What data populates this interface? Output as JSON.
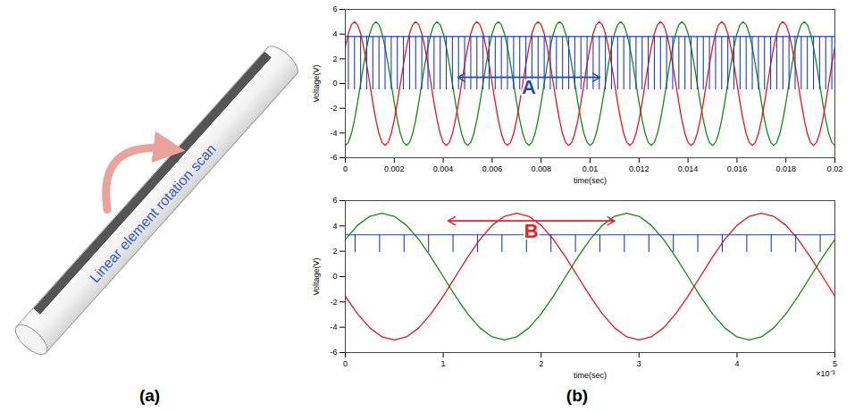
{
  "diagram": {
    "label": "(a)",
    "text": "Linear element rotation scan"
  },
  "chart_label": "(b)",
  "chart_data": [
    {
      "type": "line",
      "xlabel": "time(sec)",
      "ylabel": "Voltage(V)",
      "xlim": [
        0,
        0.02
      ],
      "xticks": [
        0,
        0.002,
        0.004,
        0.006,
        0.008,
        0.01,
        0.012,
        0.014,
        0.016,
        0.018,
        0.02
      ],
      "ylim": [
        -6,
        6
      ],
      "yticks": [
        -6,
        -4,
        -2,
        0,
        2,
        4,
        6
      ],
      "grid": false,
      "x": [
        0,
        0.000125,
        0.00025,
        0.000375,
        0.0005,
        0.000625,
        0.00075,
        0.000875,
        0.001,
        0.001125,
        0.00125,
        0.001375,
        0.0015,
        0.001625,
        0.00175,
        0.001875,
        0.002,
        0.002125,
        0.00225,
        0.002375,
        0.0025,
        0.002625,
        0.00275,
        0.002875,
        0.003,
        0.003125,
        0.00325,
        0.003375,
        0.0035,
        0.003625,
        0.00375,
        0.003875,
        0.004,
        0.004125,
        0.00425,
        0.004375,
        0.0045,
        0.004625,
        0.00475,
        0.004875,
        0.005,
        0.005125,
        0.00525,
        0.005375,
        0.0055,
        0.005625,
        0.00575,
        0.005875,
        0.006,
        0.006125,
        0.00625,
        0.006375,
        0.0065,
        0.006625,
        0.00675,
        0.006875,
        0.007,
        0.007125,
        0.00725,
        0.007375,
        0.0075,
        0.007625,
        0.00775,
        0.007875,
        0.008,
        0.008125,
        0.00825,
        0.008375,
        0.0085,
        0.008625,
        0.00875,
        0.008875,
        0.009,
        0.009125,
        0.00925,
        0.009375,
        0.0095,
        0.009625,
        0.00975,
        0.009875,
        0.01,
        0.010125,
        0.01025,
        0.010375,
        0.0105,
        0.010625,
        0.01075,
        0.010875,
        0.011,
        0.011125,
        0.01125,
        0.011375,
        0.0115,
        0.011625,
        0.01175,
        0.011875,
        0.012,
        0.012125,
        0.01225,
        0.012375,
        0.0125,
        0.012625,
        0.01275,
        0.012875,
        0.013,
        0.013125,
        0.01325,
        0.013375,
        0.0135,
        0.013625,
        0.01375,
        0.013875,
        0.014,
        0.014125,
        0.01425,
        0.014375,
        0.0145,
        0.014625,
        0.01475,
        0.014875,
        0.015,
        0.015125,
        0.01525,
        0.015375,
        0.0155,
        0.015625,
        0.01575,
        0.015875,
        0.016,
        0.016125,
        0.01625,
        0.016375,
        0.0165,
        0.016625,
        0.01675,
        0.016875,
        0.017,
        0.017125,
        0.01725,
        0.017375,
        0.0175,
        0.017625,
        0.01775,
        0.017875,
        0.018,
        0.018125,
        0.01825,
        0.018375,
        0.0185,
        0.018625,
        0.01875,
        0.018875,
        0.019,
        0.019125,
        0.01925,
        0.019375,
        0.0195,
        0.019625,
        0.01975,
        0.019875,
        0.02
      ],
      "series": [
        {
          "color": "#128a12",
          "values": [
            -5,
            -4.76,
            -4.05,
            -2.94,
            -1.55,
            0,
            1.55,
            2.94,
            4.05,
            4.76,
            5,
            4.76,
            4.05,
            2.94,
            1.55,
            0,
            -1.55,
            -2.94,
            -4.05,
            -4.76,
            -5,
            -4.76,
            -4.05,
            -2.94,
            -1.55,
            0,
            1.55,
            2.94,
            4.05,
            4.76,
            5,
            4.76,
            4.05,
            2.94,
            1.55,
            0,
            -1.55,
            -2.94,
            -4.05,
            -4.76,
            -5,
            -4.76,
            -4.05,
            -2.94,
            -1.55,
            0,
            1.55,
            2.94,
            4.05,
            4.76,
            5,
            4.76,
            4.05,
            2.94,
            1.55,
            0,
            -1.55,
            -2.94,
            -4.05,
            -4.76,
            -5,
            -4.76,
            -4.05,
            -2.94,
            -1.55,
            0,
            1.55,
            2.94,
            4.05,
            4.76,
            5,
            4.76,
            4.05,
            2.94,
            1.55,
            0,
            -1.55,
            -2.94,
            -4.05,
            -4.76,
            -5,
            -4.76,
            -4.05,
            -2.94,
            -1.55,
            0,
            1.55,
            2.94,
            4.05,
            4.76,
            5,
            4.76,
            4.05,
            2.94,
            1.55,
            0,
            -1.55,
            -2.94,
            -4.05,
            -4.76,
            -5,
            -4.76,
            -4.05,
            -2.94,
            -1.55,
            0,
            1.55,
            2.94,
            4.05,
            4.76,
            5,
            4.76,
            4.05,
            2.94,
            1.55,
            0,
            -1.55,
            -2.94,
            -4.05,
            -4.76,
            -5,
            -4.76,
            -4.05,
            -2.94,
            -1.55,
            0,
            1.55,
            2.94,
            4.05,
            4.76,
            5,
            4.76,
            4.05,
            2.94,
            1.55,
            0,
            -1.55,
            -2.94,
            -4.05,
            -4.76,
            -5,
            -4.76,
            -4.05,
            -2.94,
            -1.55,
            0,
            1.55,
            2.94,
            4.05,
            4.76,
            5,
            4.76,
            4.05,
            2.94,
            1.55,
            0,
            -1.55,
            -2.94,
            -4.05,
            -4.76,
            -5
          ]
        },
        {
          "color": "#e8141b",
          "values": [
            2.94,
            4.05,
            4.76,
            5,
            4.76,
            4.05,
            2.94,
            1.55,
            0,
            -1.55,
            -2.94,
            -4.05,
            -4.76,
            -5,
            -4.76,
            -4.05,
            -2.94,
            -1.55,
            0,
            1.55,
            2.94,
            4.05,
            4.76,
            5,
            4.76,
            4.05,
            2.94,
            1.55,
            0,
            -1.55,
            -2.94,
            -4.05,
            -4.76,
            -5,
            -4.76,
            -4.05,
            -2.94,
            -1.55,
            0,
            1.55,
            2.94,
            4.05,
            4.76,
            5,
            4.76,
            4.05,
            2.94,
            1.55,
            0,
            -1.55,
            -2.94,
            -4.05,
            -4.76,
            -5,
            -4.76,
            -4.05,
            -2.94,
            -1.55,
            0,
            1.55,
            2.94,
            4.05,
            4.76,
            5,
            4.76,
            4.05,
            2.94,
            1.55,
            0,
            -1.55,
            -2.94,
            -4.05,
            -4.76,
            -5,
            -4.76,
            -4.05,
            -2.94,
            -1.55,
            0,
            1.55,
            2.94,
            4.05,
            4.76,
            5,
            4.76,
            4.05,
            2.94,
            1.55,
            0,
            -1.55,
            -2.94,
            -4.05,
            -4.76,
            -5,
            -4.76,
            -4.05,
            -2.94,
            -1.55,
            0,
            1.55,
            2.94,
            4.05,
            4.76,
            5,
            4.76,
            4.05,
            2.94,
            1.55,
            0,
            -1.55,
            -2.94,
            -4.05,
            -4.76,
            -5,
            -4.76,
            -4.05,
            -2.94,
            -1.55,
            0,
            1.55,
            2.94,
            4.05,
            4.76,
            5,
            4.76,
            4.05,
            2.94,
            1.55,
            0,
            -1.55,
            -2.94,
            -4.05,
            -4.76,
            -5,
            -4.76,
            -4.05,
            -2.94,
            -1.55,
            0,
            1.55,
            2.94,
            4.05,
            4.76,
            5,
            4.76,
            4.05,
            2.94,
            1.55,
            0,
            -1.55,
            -2.94,
            -4.05,
            -4.76,
            -5,
            -4.76,
            -4.05,
            -2.94,
            -1.55,
            0,
            1.55,
            2.94
          ]
        }
      ],
      "pulses": {
        "color": "#1a3cd6",
        "baseline": 3.8,
        "low": -0.5,
        "x": [
          0.000125,
          0.000375,
          0.000625,
          0.000875,
          0.001125,
          0.001375,
          0.001625,
          0.001875,
          0.002125,
          0.002375,
          0.002625,
          0.002875,
          0.003125,
          0.003375,
          0.003625,
          0.003875,
          0.004125,
          0.004375,
          0.004625,
          0.004875,
          0.005125,
          0.005375,
          0.005625,
          0.005875,
          0.006125,
          0.006375,
          0.006625,
          0.006875,
          0.007125,
          0.007375,
          0.007625,
          0.007875,
          0.008125,
          0.008375,
          0.008625,
          0.008875,
          0.009125,
          0.009375,
          0.009625,
          0.009875,
          0.010125,
          0.010375,
          0.010625,
          0.010875,
          0.011125,
          0.011375,
          0.011625,
          0.011875,
          0.012125,
          0.012375,
          0.012625,
          0.012875,
          0.013125,
          0.013375,
          0.013625,
          0.013875,
          0.014125,
          0.014375,
          0.014625,
          0.014875,
          0.015125,
          0.015375,
          0.015625,
          0.015875,
          0.016125,
          0.016375,
          0.016625,
          0.016875,
          0.017125,
          0.017375,
          0.017625,
          0.017875,
          0.018125,
          0.018375,
          0.018625,
          0.018875,
          0.019125,
          0.019375,
          0.019625,
          0.019875
        ]
      },
      "annotations": [
        {
          "text": "A",
          "x": [
            0.0046,
            0.0104
          ],
          "y": 0.5,
          "color": "#2b4fa0"
        }
      ]
    },
    {
      "type": "line",
      "xlabel": "time(sec)",
      "ylabel": "Voltage(V)",
      "xlim": [
        0,
        5
      ],
      "xticks": [
        0,
        1,
        2,
        3,
        4,
        5
      ],
      "ylim": [
        -6,
        6
      ],
      "yticks": [
        -6,
        -4,
        -2,
        0,
        2,
        4,
        6
      ],
      "grid": false,
      "x": [
        0,
        0.125,
        0.25,
        0.375,
        0.5,
        0.625,
        0.75,
        0.875,
        1,
        1.125,
        1.25,
        1.375,
        1.5,
        1.625,
        1.75,
        1.875,
        2,
        2.125,
        2.25,
        2.375,
        2.5,
        2.625,
        2.75,
        2.875,
        3,
        3.125,
        3.25,
        3.375,
        3.5,
        3.625,
        3.75,
        3.875,
        4,
        4.125,
        4.25,
        4.375,
        4.5,
        4.625,
        4.75,
        4.875,
        5
      ],
      "series": [
        {
          "color": "#128a12",
          "values": [
            2.94,
            4.05,
            4.76,
            5,
            4.76,
            4.05,
            2.94,
            1.55,
            0,
            -1.55,
            -2.94,
            -4.05,
            -4.76,
            -5,
            -4.76,
            -4.05,
            -2.94,
            -1.55,
            0,
            1.55,
            2.94,
            4.05,
            4.76,
            5,
            4.76,
            4.05,
            2.94,
            1.55,
            0,
            -1.55,
            -2.94,
            -4.05,
            -4.76,
            -5,
            -4.76,
            -4.05,
            -2.94,
            -1.55,
            0,
            1.55,
            2.94
          ]
        },
        {
          "color": "#e8141b",
          "values": [
            -1.55,
            -2.94,
            -4.05,
            -4.76,
            -5,
            -4.76,
            -4.05,
            -2.94,
            -1.55,
            0,
            1.55,
            2.94,
            4.05,
            4.76,
            5,
            4.76,
            4.05,
            2.94,
            1.55,
            0,
            -1.55,
            -2.94,
            -4.05,
            -4.76,
            -5,
            -4.76,
            -4.05,
            -2.94,
            -1.55,
            0,
            1.55,
            2.94,
            4.05,
            4.76,
            5,
            4.76,
            4.05,
            2.94,
            1.55,
            0,
            -1.55
          ]
        }
      ],
      "pulses": {
        "color": "#1a3cd6",
        "baseline": 3.3,
        "low": 1.9,
        "x": [
          0.1,
          0.35,
          0.6,
          0.85,
          1.1,
          1.35,
          1.6,
          1.85,
          2.1,
          2.35,
          2.6,
          2.85,
          3.1,
          3.35,
          3.6,
          3.85,
          4.1,
          4.35,
          4.6,
          4.85
        ]
      },
      "annotations": [
        {
          "text": "B",
          "x": [
            1.05,
            2.75
          ],
          "y": 4.4,
          "color": "#e8231f"
        },
        {
          "text": "×10⁻³"
        }
      ]
    }
  ]
}
